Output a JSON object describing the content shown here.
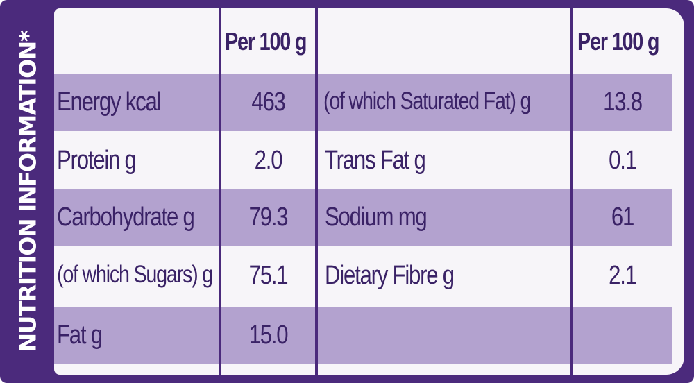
{
  "side_title": "NUTRITION INFORMATION*",
  "headers": {
    "left_value": "Per 100 g",
    "right_value": "Per 100 g"
  },
  "left_rows": [
    {
      "label": "Energy kcal",
      "value": "463"
    },
    {
      "label": "Protein g",
      "value": "2.0"
    },
    {
      "label": "Carbohydrate g",
      "value": "79.3"
    },
    {
      "label": "(of which Sugars) g",
      "value": "75.1"
    },
    {
      "label": "Fat g",
      "value": "15.0"
    }
  ],
  "right_rows": [
    {
      "label": "(of which Saturated Fat) g",
      "value": "13.8"
    },
    {
      "label": "Trans Fat g",
      "value": "0.1"
    },
    {
      "label": "Sodium mg",
      "value": "61"
    },
    {
      "label": "Dietary Fibre g",
      "value": "2.1"
    },
    {
      "label": "",
      "value": ""
    }
  ],
  "colors": {
    "frame": "#4b2a7c",
    "band": "#b3a2cf",
    "text": "#3a2266",
    "background": "#f7f5f9"
  }
}
